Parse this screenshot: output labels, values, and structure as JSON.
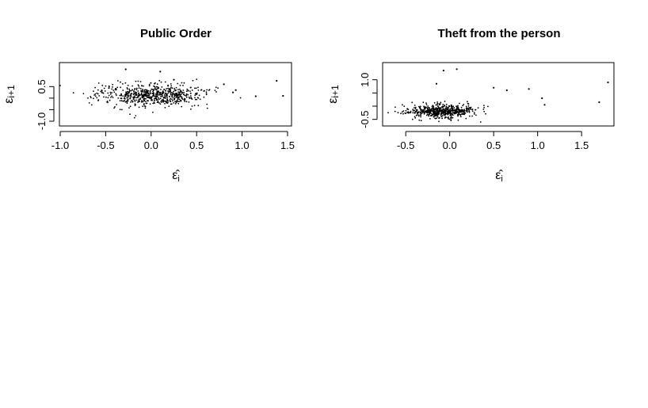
{
  "charts": [
    {
      "type": "scatter",
      "title": "Public Order",
      "xlabel": "ε̂",
      "xlabel_sub": "i",
      "ylabel": "ε",
      "ylabel_sub": "i+1",
      "xlim": [
        -1.0,
        1.5
      ],
      "ylim": [
        -1.0,
        1.3
      ],
      "xticks": [
        "-1.0",
        "-0.5",
        "0.0",
        "0.5",
        "1.0",
        "1.5"
      ],
      "yticks": [
        "-1.0",
        "0.5"
      ],
      "point_color": "#000000",
      "n_points": 650,
      "cloud": {
        "x_mean": 0.0,
        "x_sd": 0.3,
        "y_mean": 0.12,
        "y_sd": 0.25
      },
      "outliers": [
        [
          -0.28,
          1.25
        ],
        [
          0.1,
          1.15
        ],
        [
          0.25,
          0.8
        ],
        [
          0.8,
          0.6
        ],
        [
          0.9,
          0.25
        ],
        [
          1.15,
          0.08
        ],
        [
          1.38,
          0.75
        ],
        [
          1.45,
          0.1
        ],
        [
          0.93,
          0.35
        ]
      ]
    },
    {
      "type": "scatter",
      "title": "Theft from the person",
      "xlabel": "ε̂",
      "xlabel_sub": "i",
      "ylabel": "ε",
      "ylabel_sub": "i+1",
      "xlim": [
        -0.7,
        1.85
      ],
      "ylim": [
        -0.6,
        1.5
      ],
      "xticks": [
        "-0.5",
        "0.0",
        "0.5",
        "1.0",
        "1.5"
      ],
      "yticks": [
        "-0.5",
        "1.0"
      ],
      "point_color": "#000000",
      "n_points": 600,
      "cloud": {
        "x_mean": -0.08,
        "x_sd": 0.18,
        "y_mean": -0.2,
        "y_sd": 0.13
      },
      "outliers": [
        [
          -0.07,
          1.35
        ],
        [
          0.08,
          1.4
        ],
        [
          -0.15,
          0.85
        ],
        [
          0.5,
          0.7
        ],
        [
          0.9,
          0.65
        ],
        [
          1.05,
          0.3
        ],
        [
          1.7,
          0.15
        ],
        [
          1.8,
          0.9
        ],
        [
          0.65,
          0.6
        ],
        [
          1.08,
          0.05
        ]
      ]
    }
  ]
}
